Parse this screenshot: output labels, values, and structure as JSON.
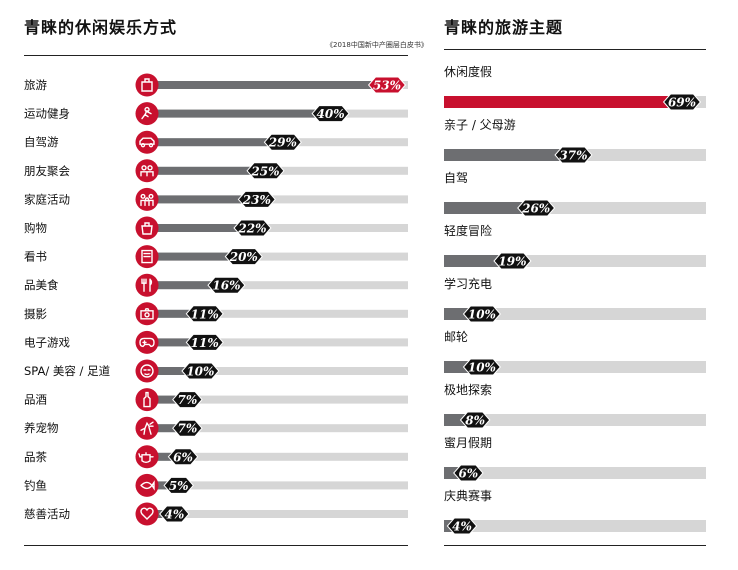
{
  "left_title": "青睐的休闲娱乐方式",
  "right_title": "青睐的旅游主题",
  "source": "《2018中国新中产圈层白皮书》",
  "colors": {
    "accent": "#c8102e",
    "bar_dark": "#6d6e71",
    "bar_light": "#d6d6d6",
    "badge": "#111111"
  },
  "chart_data": [
    {
      "type": "bar",
      "title": "青睐的休闲娱乐方式",
      "categories": [
        "旅游",
        "运动健身",
        "自驾游",
        "朋友聚会",
        "家庭活动",
        "购物",
        "看书",
        "品美食",
        "摄影",
        "电子游戏",
        "SPA/ 美容 / 足道",
        "品酒",
        "养宠物",
        "品茶",
        "钓鱼",
        "慈善活动"
      ],
      "values": [
        53,
        40,
        29,
        25,
        23,
        22,
        20,
        16,
        11,
        11,
        10,
        7,
        7,
        6,
        5,
        4
      ],
      "labels": [
        "53%",
        "40%",
        "29%",
        "25%",
        "23%",
        "22%",
        "20%",
        "16%",
        "11%",
        "11%",
        "10%",
        "7%",
        "7%",
        "6%",
        "5%",
        "4%"
      ],
      "icons": [
        "luggage-icon",
        "running-icon",
        "car-icon",
        "people-icon",
        "family-icon",
        "shopping-bag-icon",
        "book-icon",
        "fork-knife-icon",
        "camera-icon",
        "gamepad-icon",
        "face-mask-icon",
        "wine-bottle-icon",
        "dog-icon",
        "teapot-icon",
        "fish-icon",
        "heart-icon"
      ],
      "xlim": [
        0,
        100
      ]
    },
    {
      "type": "bar",
      "title": "青睐的旅游主题",
      "categories": [
        "休闲度假",
        "亲子 / 父母游",
        "自驾",
        "轻度冒险",
        "学习充电",
        "邮轮",
        "极地探索",
        "蜜月假期",
        "庆典赛事"
      ],
      "values": [
        69,
        37,
        26,
        19,
        10,
        10,
        8,
        6,
        4
      ],
      "labels": [
        "69%",
        "37%",
        "26%",
        "19%",
        "10%",
        "10%",
        "8%",
        "6%",
        "4%"
      ],
      "xlim": [
        0,
        100
      ]
    }
  ]
}
